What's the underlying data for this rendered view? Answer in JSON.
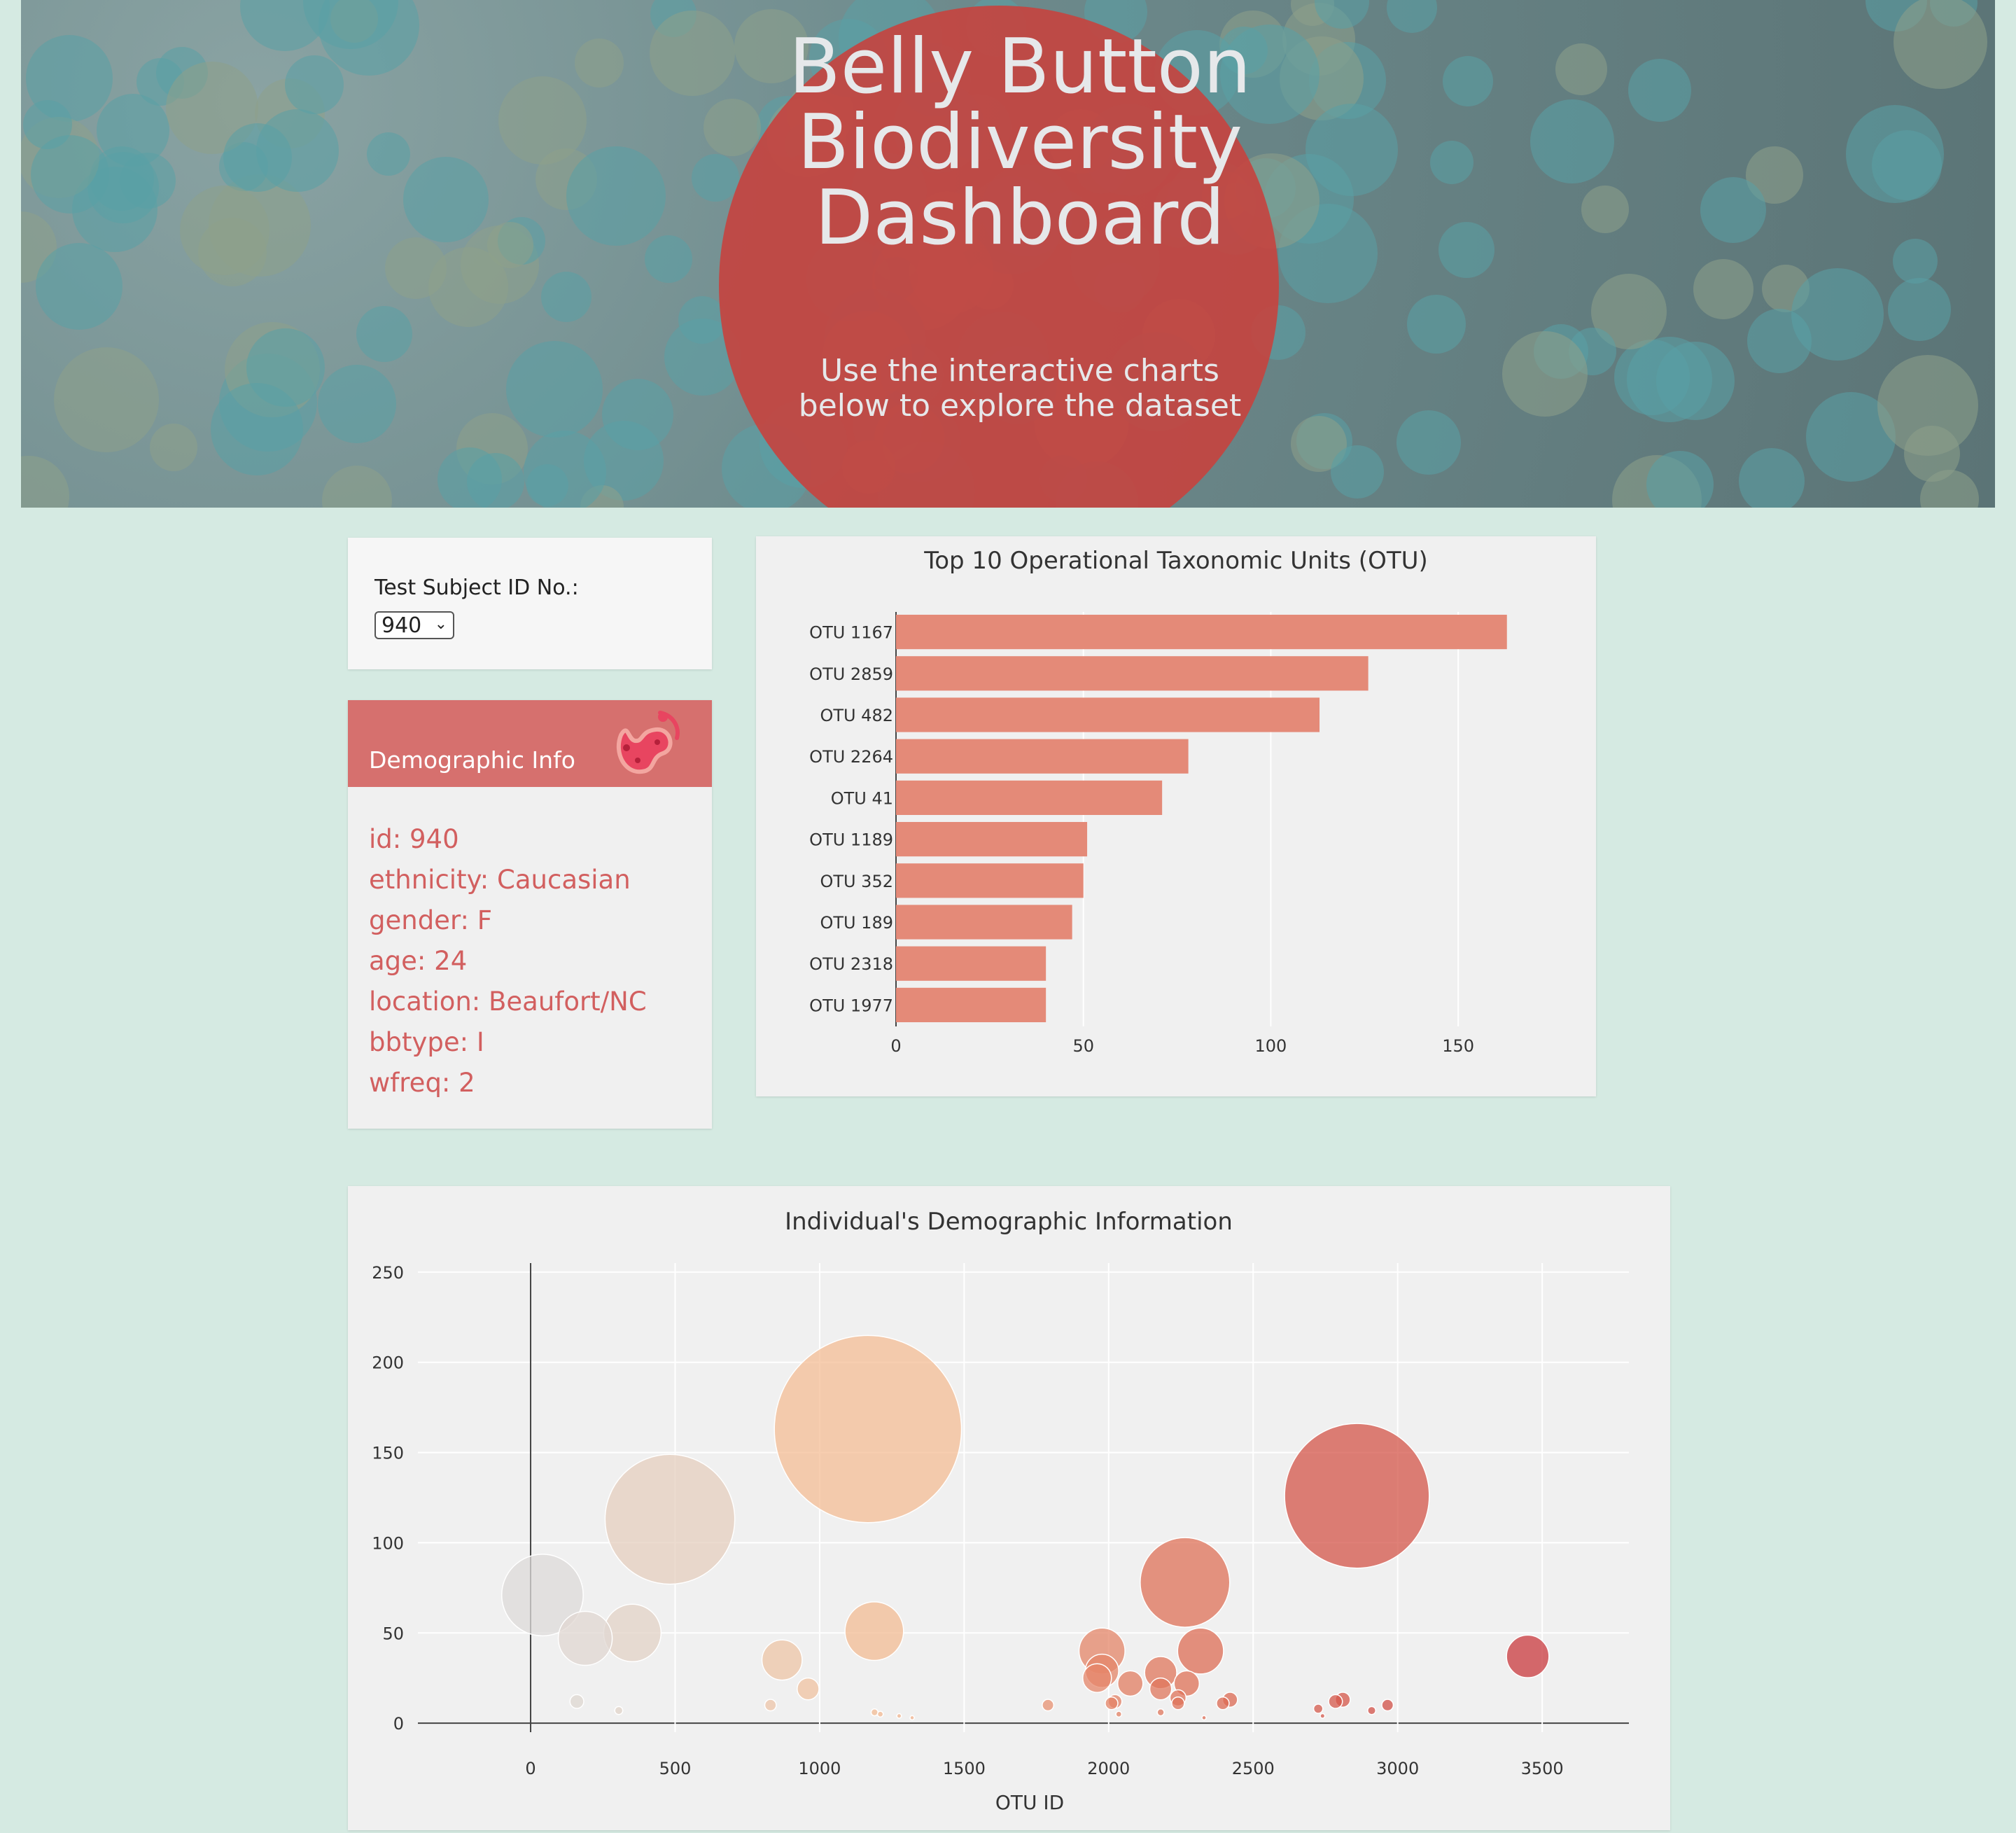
{
  "hero": {
    "title": "Belly Button Biodiversity Dashboard",
    "subtitle_line1": "Use the interactive charts",
    "subtitle_line2": "below to explore the dataset"
  },
  "selector": {
    "label": "Test Subject ID No.:",
    "selected": "940"
  },
  "demographics": {
    "title": "Demographic Info",
    "icon": "bacteria-icon",
    "items": [
      "id: 940",
      "ethnicity: Caucasian",
      "gender: F",
      "age: 24",
      "location: Beaufort/NC",
      "bbtype: I",
      "wfreq: 2"
    ]
  },
  "colors": {
    "bar": "#e48a78",
    "accent": "#d6706e",
    "background": "#d5eae2"
  },
  "chart_data": [
    {
      "type": "bar",
      "orientation": "horizontal",
      "title": "Top 10 Operational Taxonomic Units (OTU)",
      "categories": [
        "OTU 1167",
        "OTU 2859",
        "OTU 482",
        "OTU 2264",
        "OTU 41",
        "OTU 1189",
        "OTU 352",
        "OTU 189",
        "OTU 2318",
        "OTU 1977"
      ],
      "values": [
        163,
        126,
        113,
        78,
        71,
        51,
        50,
        47,
        40,
        40
      ],
      "xlim": [
        0,
        175
      ],
      "xticks": [
        0,
        50,
        100,
        150
      ],
      "grid": true
    },
    {
      "type": "scatter",
      "subtype": "bubble",
      "title": "Individual's Demographic Information",
      "xlabel": "OTU ID",
      "ylabel": "",
      "xlim": [
        -390,
        3800
      ],
      "ylim": [
        -5,
        255
      ],
      "xticks": [
        0,
        500,
        1000,
        1500,
        2000,
        2500,
        3000,
        3500
      ],
      "yticks": [
        0,
        50,
        100,
        150,
        200,
        250
      ],
      "grid": true,
      "colorscale": "grey to orange to red by OTU ID",
      "points": [
        {
          "x": 41,
          "y": 71
        },
        {
          "x": 189,
          "y": 47
        },
        {
          "x": 352,
          "y": 50
        },
        {
          "x": 482,
          "y": 113
        },
        {
          "x": 1167,
          "y": 163
        },
        {
          "x": 1189,
          "y": 51
        },
        {
          "x": 2264,
          "y": 78
        },
        {
          "x": 2859,
          "y": 126
        },
        {
          "x": 3450,
          "y": 37
        },
        {
          "x": 1977,
          "y": 40
        },
        {
          "x": 2318,
          "y": 40
        },
        {
          "x": 870,
          "y": 35
        },
        {
          "x": 960,
          "y": 19
        },
        {
          "x": 1977,
          "y": 29
        },
        {
          "x": 1960,
          "y": 25
        },
        {
          "x": 2075,
          "y": 22
        },
        {
          "x": 2180,
          "y": 28
        },
        {
          "x": 2180,
          "y": 19
        },
        {
          "x": 2270,
          "y": 22
        },
        {
          "x": 2240,
          "y": 14
        },
        {
          "x": 2240,
          "y": 11
        },
        {
          "x": 2420,
          "y": 13
        },
        {
          "x": 2395,
          "y": 11
        },
        {
          "x": 2022,
          "y": 12
        },
        {
          "x": 2010,
          "y": 11
        },
        {
          "x": 1790,
          "y": 10
        },
        {
          "x": 160,
          "y": 12
        },
        {
          "x": 830,
          "y": 10
        },
        {
          "x": 2725,
          "y": 8
        },
        {
          "x": 2785,
          "y": 12
        },
        {
          "x": 2810,
          "y": 13
        },
        {
          "x": 2965,
          "y": 10
        },
        {
          "x": 2910,
          "y": 7
        },
        {
          "x": 305,
          "y": 7
        },
        {
          "x": 1190,
          "y": 6
        },
        {
          "x": 1210,
          "y": 5
        },
        {
          "x": 1275,
          "y": 4
        },
        {
          "x": 2180,
          "y": 6
        },
        {
          "x": 2035,
          "y": 5
        },
        {
          "x": 2740,
          "y": 4
        },
        {
          "x": 2330,
          "y": 3
        },
        {
          "x": 1320,
          "y": 3
        }
      ]
    }
  ]
}
